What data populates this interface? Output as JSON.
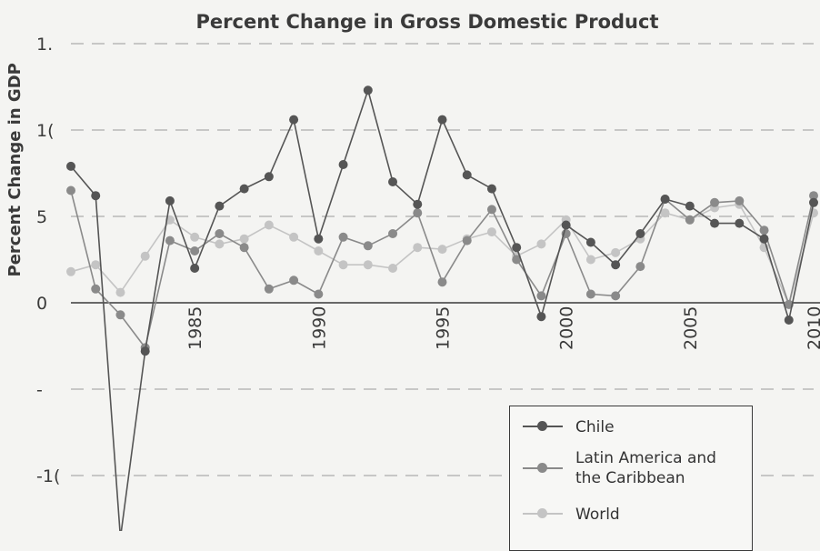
{
  "chart_data": {
    "type": "line",
    "title": "Percent Change in Gross Domestic Product",
    "ylabel": "Percent Change in GDP",
    "xlabel": "",
    "x": [
      1980,
      1981,
      1982,
      1983,
      1984,
      1985,
      1986,
      1987,
      1988,
      1989,
      1990,
      1991,
      1992,
      1993,
      1994,
      1995,
      1996,
      1997,
      1998,
      1999,
      2000,
      2001,
      2002,
      2003,
      2004,
      2005,
      2006,
      2007,
      2008,
      2009,
      2010
    ],
    "xticks": [
      "1985",
      "1990",
      "1995",
      "2000",
      "2005",
      "2010"
    ],
    "ytick_labels": [
      "-1(",
      "-",
      "0",
      "5",
      "1(",
      "1."
    ],
    "ylim": [
      -13,
      15
    ],
    "grid": true,
    "legend_position": "bottom-right",
    "series": [
      {
        "name": "Chile",
        "color": "#555555",
        "values": [
          7.9,
          6.2,
          -13.6,
          -2.8,
          5.9,
          2.0,
          5.6,
          6.6,
          7.3,
          10.6,
          3.7,
          8.0,
          12.3,
          7.0,
          5.7,
          10.6,
          7.4,
          6.6,
          3.2,
          -0.8,
          4.5,
          3.5,
          2.2,
          4.0,
          6.0,
          5.6,
          4.6,
          4.6,
          3.7,
          -1.0,
          5.8
        ]
      },
      {
        "name": "Latin America and the Caribbean",
        "color": "#8a8a8a",
        "values": [
          6.5,
          0.8,
          -0.7,
          -2.6,
          3.6,
          3.0,
          4.0,
          3.2,
          0.8,
          1.3,
          0.5,
          3.8,
          3.3,
          4.0,
          5.2,
          1.2,
          3.6,
          5.4,
          2.5,
          0.4,
          4.0,
          0.5,
          0.4,
          2.1,
          6.0,
          4.8,
          5.8,
          5.9,
          4.2,
          -0.1,
          6.2
        ]
      },
      {
        "name": "World",
        "color": "#c4c4c4",
        "values": [
          1.8,
          2.2,
          0.6,
          2.7,
          4.8,
          3.8,
          3.4,
          3.7,
          4.5,
          3.8,
          3.0,
          2.2,
          2.2,
          2.0,
          3.2,
          3.1,
          3.7,
          4.1,
          2.7,
          3.4,
          4.8,
          2.5,
          2.9,
          3.7,
          5.2,
          4.8,
          5.5,
          5.7,
          3.2,
          -0.1,
          5.2
        ]
      }
    ]
  }
}
